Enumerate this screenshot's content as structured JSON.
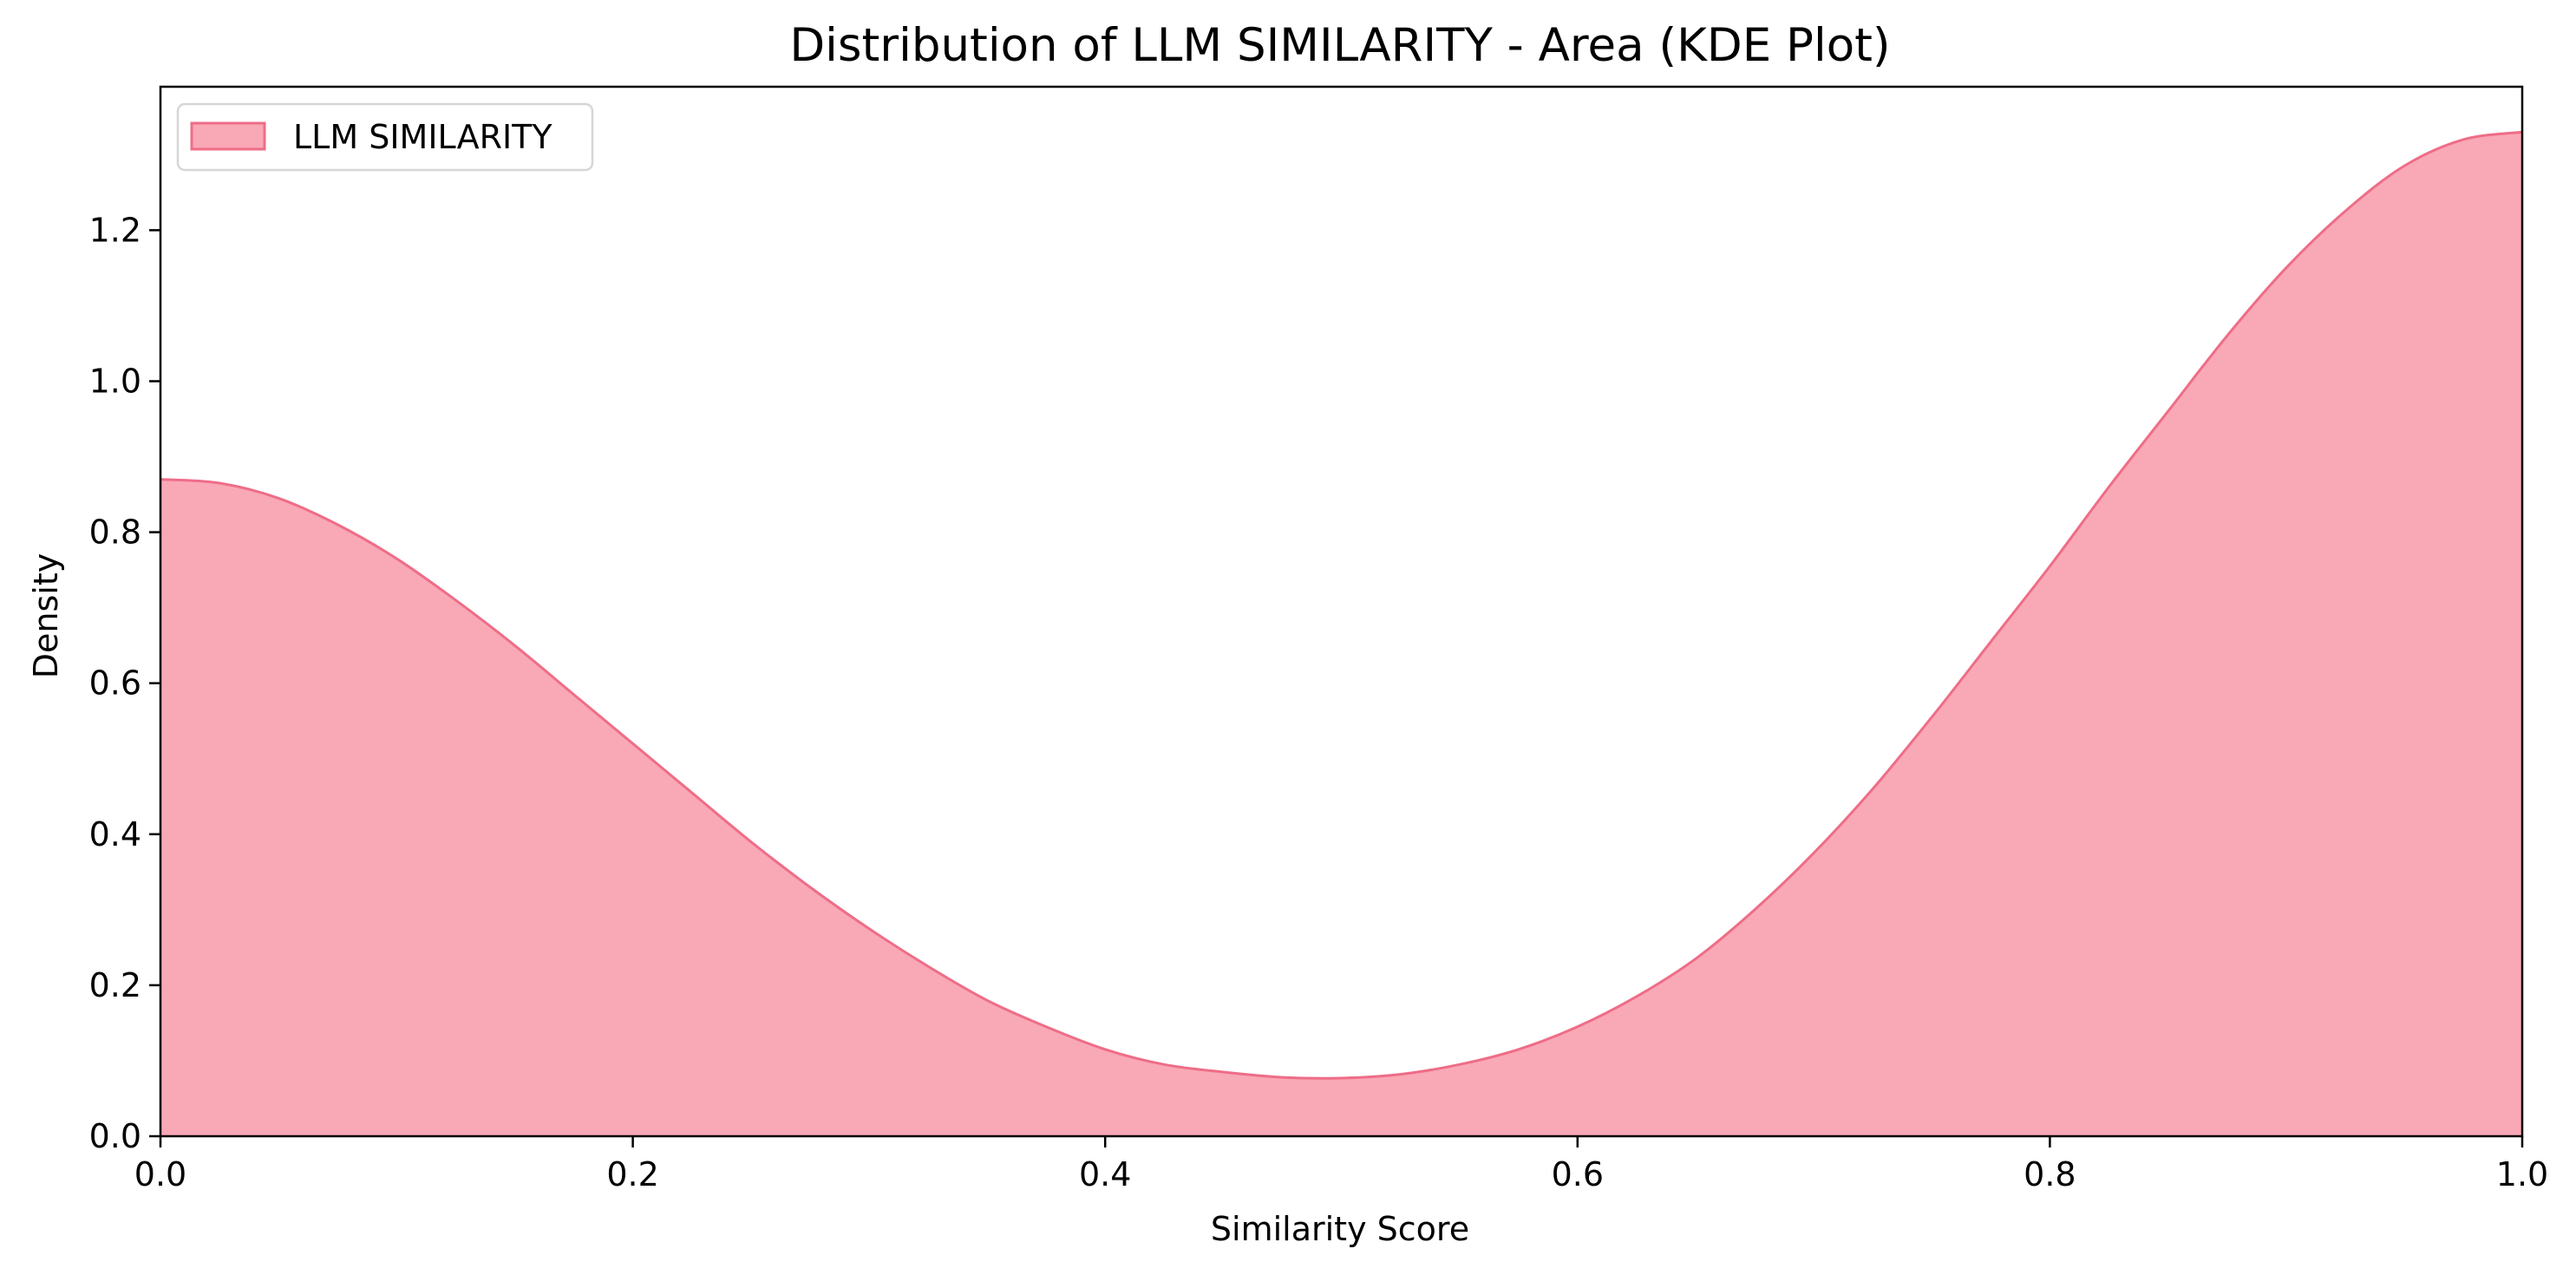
{
  "chart_data": {
    "type": "area",
    "title": "Distribution of LLM SIMILARITY - Area (KDE Plot)",
    "xlabel": "Similarity Score",
    "ylabel": "Density",
    "xlim": [
      0,
      1
    ],
    "ylim": [
      0,
      1.39
    ],
    "xticks": [
      0.0,
      0.2,
      0.4,
      0.6,
      0.8,
      1.0
    ],
    "xtick_labels": [
      "0.0",
      "0.2",
      "0.4",
      "0.6",
      "0.8",
      "1.0"
    ],
    "yticks": [
      0.0,
      0.2,
      0.4,
      0.6,
      0.8,
      1.0,
      1.2
    ],
    "ytick_labels": [
      "0.0",
      "0.2",
      "0.4",
      "0.6",
      "0.8",
      "1.0",
      "1.2"
    ],
    "grid": false,
    "legend_position": "top-left",
    "series": [
      {
        "name": "LLM SIMILARITY",
        "fill_color": "#f9a8b6",
        "line_color": "#ee6d87",
        "x": [
          0.0,
          0.025,
          0.05,
          0.075,
          0.1,
          0.125,
          0.15,
          0.175,
          0.2,
          0.225,
          0.25,
          0.275,
          0.3,
          0.325,
          0.35,
          0.375,
          0.4,
          0.425,
          0.45,
          0.475,
          0.5,
          0.525,
          0.55,
          0.575,
          0.6,
          0.625,
          0.65,
          0.675,
          0.7,
          0.725,
          0.75,
          0.775,
          0.8,
          0.825,
          0.85,
          0.875,
          0.9,
          0.925,
          0.95,
          0.975,
          1.0
        ],
        "y": [
          0.87,
          0.865,
          0.845,
          0.81,
          0.765,
          0.71,
          0.65,
          0.585,
          0.52,
          0.455,
          0.39,
          0.33,
          0.275,
          0.225,
          0.18,
          0.145,
          0.115,
          0.095,
          0.085,
          0.078,
          0.077,
          0.082,
          0.095,
          0.115,
          0.145,
          0.185,
          0.235,
          0.3,
          0.375,
          0.46,
          0.555,
          0.655,
          0.755,
          0.86,
          0.96,
          1.06,
          1.15,
          1.225,
          1.285,
          1.32,
          1.33
        ]
      }
    ]
  }
}
